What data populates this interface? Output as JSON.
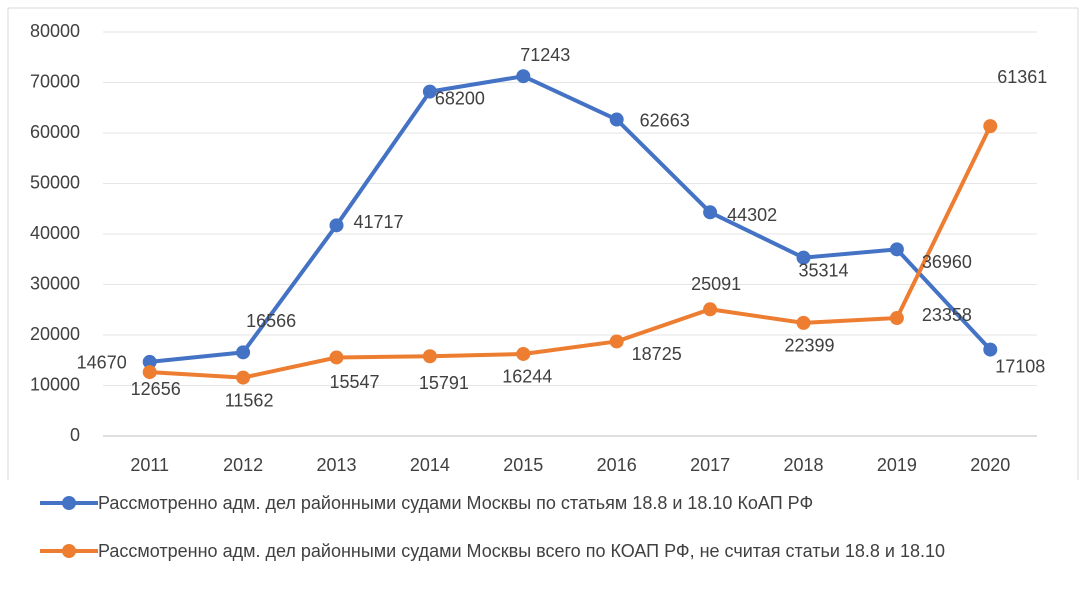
{
  "chart_data": {
    "type": "line",
    "x": [
      "2011",
      "2012",
      "2013",
      "2014",
      "2015",
      "2016",
      "2017",
      "2018",
      "2019",
      "2020"
    ],
    "series": [
      {
        "name": "Рассмотренно адм.  дел районными судами Москвы по статьям 18.8 и 18.10 КоАП РФ",
        "color": "#4472c4",
        "values": [
          14670,
          16566,
          41717,
          68200,
          71243,
          62663,
          44302,
          35314,
          36960,
          17108
        ]
      },
      {
        "name": "Рассмотренно адм. дел районными судами Москвы всего по КОАП РФ, не считая статьи 18.8 и 18.10",
        "color": "#ed7d31",
        "values": [
          12656,
          11562,
          15547,
          15791,
          16244,
          18725,
          25091,
          22399,
          23358,
          61361
        ]
      }
    ],
    "ylim": [
      0,
      80000
    ],
    "yticks": [
      0,
      10000,
      20000,
      30000,
      40000,
      50000,
      60000,
      70000,
      80000
    ],
    "grid": true,
    "legend": "bottom"
  }
}
